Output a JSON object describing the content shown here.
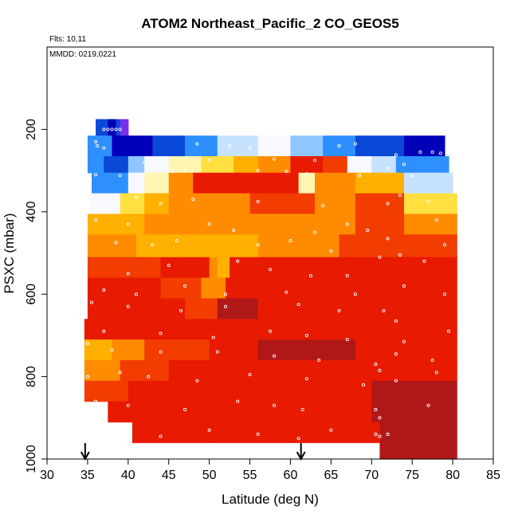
{
  "chart_data": {
    "type": "heatmap",
    "title": "ATOM2 Northeast_Pacific_2 CO_GEOS5",
    "flights_label": "Flts: 10,11",
    "dates_label": "MMDD: 0219,0221",
    "xlabel": "Latitude (deg N)",
    "ylabel": "PSXC (mbar)",
    "xlim": [
      30,
      85
    ],
    "ylim": [
      1000,
      0
    ],
    "x_ticks": [
      30,
      35,
      40,
      45,
      50,
      55,
      60,
      65,
      70,
      75,
      80,
      85
    ],
    "x_tick_labels": [
      "30",
      "35",
      "40",
      "45",
      "50",
      "55",
      "60",
      "65",
      "70",
      "75",
      "80",
      "85"
    ],
    "y_ticks": [
      200,
      400,
      600,
      800,
      1000
    ],
    "y_tick_labels": [
      "200",
      "400",
      "600",
      "800",
      "1000"
    ],
    "arrow_markers_lat": [
      34.7,
      61.3
    ],
    "grid": false,
    "colors": {
      "darkred": "#b01818",
      "red": "#e81a00",
      "redorange": "#f23c00",
      "orange": "#ff8c00",
      "amber": "#ffb000",
      "yellow": "#ffe040",
      "paleyellow": "#fff5b0",
      "white": "#f7f9ff",
      "paleblue": "#c6e2ff",
      "lightblue": "#8fc6ff",
      "skyblue": "#2e90ff",
      "blue": "#0a48d8",
      "navy": "#0000b8",
      "purple": "#7a30e8"
    },
    "layers": [
      {
        "p_top": 175,
        "p_bot": 215,
        "segments": [
          {
            "lat0": 36.0,
            "lat1": 37.5,
            "level": "blue"
          },
          {
            "lat0": 37.5,
            "lat1": 38.5,
            "level": "navy"
          },
          {
            "lat0": 38.5,
            "lat1": 39.0,
            "level": "blue"
          },
          {
            "lat0": 39.0,
            "lat1": 40.0,
            "level": "purple"
          }
        ]
      },
      {
        "p_top": 215,
        "p_bot": 265,
        "segments": [
          {
            "lat0": 35.0,
            "lat1": 38.0,
            "level": "skyblue"
          },
          {
            "lat0": 38.0,
            "lat1": 43.0,
            "level": "navy"
          },
          {
            "lat0": 43.0,
            "lat1": 47.0,
            "level": "blue"
          },
          {
            "lat0": 47.0,
            "lat1": 51.0,
            "level": "skyblue"
          },
          {
            "lat0": 51.0,
            "lat1": 56.0,
            "level": "paleblue"
          },
          {
            "lat0": 56.0,
            "lat1": 60.0,
            "level": "white"
          },
          {
            "lat0": 60.0,
            "lat1": 64.0,
            "level": "lightblue"
          },
          {
            "lat0": 64.0,
            "lat1": 68.0,
            "level": "skyblue"
          },
          {
            "lat0": 68.0,
            "lat1": 74.0,
            "level": "blue"
          },
          {
            "lat0": 74.0,
            "lat1": 79.0,
            "level": "navy"
          }
        ]
      },
      {
        "p_top": 265,
        "p_bot": 305,
        "segments": [
          {
            "lat0": 35.0,
            "lat1": 37.0,
            "level": "skyblue"
          },
          {
            "lat0": 37.0,
            "lat1": 40.0,
            "level": "blue"
          },
          {
            "lat0": 40.0,
            "lat1": 42.0,
            "level": "lightblue"
          },
          {
            "lat0": 42.0,
            "lat1": 45.0,
            "level": "white"
          },
          {
            "lat0": 45.0,
            "lat1": 49.0,
            "level": "paleyellow"
          },
          {
            "lat0": 49.0,
            "lat1": 53.0,
            "level": "yellow"
          },
          {
            "lat0": 53.0,
            "lat1": 56.0,
            "level": "amber"
          },
          {
            "lat0": 56.0,
            "lat1": 60.0,
            "level": "orange"
          },
          {
            "lat0": 60.0,
            "lat1": 64.0,
            "level": "red"
          },
          {
            "lat0": 64.0,
            "lat1": 67.0,
            "level": "redorange"
          },
          {
            "lat0": 67.0,
            "lat1": 70.0,
            "level": "white"
          },
          {
            "lat0": 70.0,
            "lat1": 73.0,
            "level": "paleblue"
          },
          {
            "lat0": 73.0,
            "lat1": 79.5,
            "level": "skyblue"
          }
        ]
      },
      {
        "p_top": 305,
        "p_bot": 355,
        "segments": [
          {
            "lat0": 35.5,
            "lat1": 40.0,
            "level": "skyblue"
          },
          {
            "lat0": 40.0,
            "lat1": 42.0,
            "level": "white"
          },
          {
            "lat0": 42.0,
            "lat1": 45.0,
            "level": "paleyellow"
          },
          {
            "lat0": 45.0,
            "lat1": 48.0,
            "level": "orange"
          },
          {
            "lat0": 48.0,
            "lat1": 55.0,
            "level": "red"
          },
          {
            "lat0": 55.0,
            "lat1": 61.0,
            "level": "red"
          },
          {
            "lat0": 61.0,
            "lat1": 63.0,
            "level": "paleyellow"
          },
          {
            "lat0": 63.0,
            "lat1": 68.0,
            "level": "orange"
          },
          {
            "lat0": 68.0,
            "lat1": 74.0,
            "level": "amber"
          },
          {
            "lat0": 74.0,
            "lat1": 80.0,
            "level": "paleblue"
          }
        ]
      },
      {
        "p_top": 355,
        "p_bot": 405,
        "segments": [
          {
            "lat0": 35.2,
            "lat1": 39.0,
            "level": "white"
          },
          {
            "lat0": 39.0,
            "lat1": 42.0,
            "level": "yellow"
          },
          {
            "lat0": 42.0,
            "lat1": 45.0,
            "level": "amber"
          },
          {
            "lat0": 45.0,
            "lat1": 55.0,
            "level": "orange"
          },
          {
            "lat0": 55.0,
            "lat1": 63.0,
            "level": "redorange"
          },
          {
            "lat0": 63.0,
            "lat1": 68.0,
            "level": "orange"
          },
          {
            "lat0": 68.0,
            "lat1": 74.0,
            "level": "redorange"
          },
          {
            "lat0": 74.0,
            "lat1": 80.5,
            "level": "yellow"
          }
        ]
      },
      {
        "p_top": 405,
        "p_bot": 455,
        "segments": [
          {
            "lat0": 35.0,
            "lat1": 42.0,
            "level": "amber"
          },
          {
            "lat0": 42.0,
            "lat1": 50.0,
            "level": "orange"
          },
          {
            "lat0": 50.0,
            "lat1": 60.0,
            "level": "orange"
          },
          {
            "lat0": 60.0,
            "lat1": 68.0,
            "level": "orange"
          },
          {
            "lat0": 68.0,
            "lat1": 74.0,
            "level": "redorange"
          },
          {
            "lat0": 74.0,
            "lat1": 80.5,
            "level": "orange"
          }
        ]
      },
      {
        "p_top": 455,
        "p_bot": 510,
        "segments": [
          {
            "lat0": 35.0,
            "lat1": 41.0,
            "level": "orange"
          },
          {
            "lat0": 41.0,
            "lat1": 45.0,
            "level": "amber"
          },
          {
            "lat0": 45.0,
            "lat1": 56.0,
            "level": "amber"
          },
          {
            "lat0": 56.0,
            "lat1": 66.0,
            "level": "orange"
          },
          {
            "lat0": 66.0,
            "lat1": 74.0,
            "level": "redorange"
          },
          {
            "lat0": 74.0,
            "lat1": 80.5,
            "level": "redorange"
          }
        ]
      },
      {
        "p_top": 510,
        "p_bot": 560,
        "segments": [
          {
            "lat0": 35.0,
            "lat1": 44.0,
            "level": "redorange"
          },
          {
            "lat0": 44.0,
            "lat1": 50.0,
            "level": "red"
          },
          {
            "lat0": 50.0,
            "lat1": 51.0,
            "level": "orange"
          },
          {
            "lat0": 51.0,
            "lat1": 52.5,
            "level": "amber"
          },
          {
            "lat0": 52.5,
            "lat1": 68.0,
            "level": "red"
          },
          {
            "lat0": 68.0,
            "lat1": 74.0,
            "level": "red"
          },
          {
            "lat0": 74.0,
            "lat1": 80.5,
            "level": "red"
          }
        ]
      },
      {
        "p_top": 560,
        "p_bot": 610,
        "segments": [
          {
            "lat0": 35.0,
            "lat1": 44.0,
            "level": "red"
          },
          {
            "lat0": 44.0,
            "lat1": 49.0,
            "level": "redorange"
          },
          {
            "lat0": 49.0,
            "lat1": 52.0,
            "level": "orange"
          },
          {
            "lat0": 52.0,
            "lat1": 60.0,
            "level": "red"
          },
          {
            "lat0": 60.0,
            "lat1": 68.0,
            "level": "red"
          },
          {
            "lat0": 68.0,
            "lat1": 80.5,
            "level": "red"
          }
        ]
      },
      {
        "p_top": 610,
        "p_bot": 660,
        "segments": [
          {
            "lat0": 35.0,
            "lat1": 47.0,
            "level": "red"
          },
          {
            "lat0": 47.0,
            "lat1": 51.0,
            "level": "redorange"
          },
          {
            "lat0": 51.0,
            "lat1": 56.0,
            "level": "darkred"
          },
          {
            "lat0": 56.0,
            "lat1": 60.0,
            "level": "red"
          },
          {
            "lat0": 60.0,
            "lat1": 68.0,
            "level": "red"
          },
          {
            "lat0": 68.0,
            "lat1": 80.5,
            "level": "red"
          }
        ]
      },
      {
        "p_top": 660,
        "p_bot": 710,
        "segments": [
          {
            "lat0": 34.6,
            "lat1": 44.0,
            "level": "red"
          },
          {
            "lat0": 44.0,
            "lat1": 50.0,
            "level": "red"
          },
          {
            "lat0": 50.0,
            "lat1": 56.0,
            "level": "red"
          },
          {
            "lat0": 56.0,
            "lat1": 66.0,
            "level": "red"
          },
          {
            "lat0": 66.0,
            "lat1": 80.5,
            "level": "red"
          }
        ]
      },
      {
        "p_top": 710,
        "p_bot": 760,
        "segments": [
          {
            "lat0": 34.6,
            "lat1": 38.0,
            "level": "amber"
          },
          {
            "lat0": 38.0,
            "lat1": 42.0,
            "level": "orange"
          },
          {
            "lat0": 42.0,
            "lat1": 50.0,
            "level": "redorange"
          },
          {
            "lat0": 50.0,
            "lat1": 56.0,
            "level": "red"
          },
          {
            "lat0": 56.0,
            "lat1": 68.0,
            "level": "darkred"
          },
          {
            "lat0": 68.0,
            "lat1": 80.5,
            "level": "red"
          }
        ]
      },
      {
        "p_top": 760,
        "p_bot": 810,
        "segments": [
          {
            "lat0": 34.6,
            "lat1": 39.0,
            "level": "orange"
          },
          {
            "lat0": 39.0,
            "lat1": 45.0,
            "level": "redorange"
          },
          {
            "lat0": 45.0,
            "lat1": 55.0,
            "level": "red"
          },
          {
            "lat0": 55.0,
            "lat1": 66.0,
            "level": "red"
          },
          {
            "lat0": 66.0,
            "lat1": 80.5,
            "level": "red"
          }
        ]
      },
      {
        "p_top": 810,
        "p_bot": 860,
        "segments": [
          {
            "lat0": 34.6,
            "lat1": 40.0,
            "level": "redorange"
          },
          {
            "lat0": 40.0,
            "lat1": 50.0,
            "level": "red"
          },
          {
            "lat0": 50.0,
            "lat1": 60.0,
            "level": "red"
          },
          {
            "lat0": 60.0,
            "lat1": 70.0,
            "level": "red"
          },
          {
            "lat0": 70.0,
            "lat1": 80.5,
            "level": "darkred"
          }
        ]
      },
      {
        "p_top": 860,
        "p_bot": 910,
        "segments": [
          {
            "lat0": 37.5,
            "lat1": 45.0,
            "level": "red"
          },
          {
            "lat0": 45.0,
            "lat1": 58.0,
            "level": "red"
          },
          {
            "lat0": 58.0,
            "lat1": 70.0,
            "level": "red"
          },
          {
            "lat0": 70.0,
            "lat1": 80.5,
            "level": "darkred"
          }
        ]
      },
      {
        "p_top": 910,
        "p_bot": 960,
        "segments": [
          {
            "lat0": 40.5,
            "lat1": 50.0,
            "level": "red"
          },
          {
            "lat0": 50.0,
            "lat1": 60.0,
            "level": "red"
          },
          {
            "lat0": 60.0,
            "lat1": 71.0,
            "level": "red"
          },
          {
            "lat0": 71.0,
            "lat1": 80.5,
            "level": "darkred"
          }
        ]
      },
      {
        "p_top": 960,
        "p_bot": 1000,
        "segments": [
          {
            "lat0": 71.0,
            "lat1": 80.5,
            "level": "darkred"
          }
        ]
      }
    ],
    "observations": [
      [
        37.0,
        200
      ],
      [
        37.5,
        200
      ],
      [
        38.0,
        200
      ],
      [
        38.5,
        200
      ],
      [
        39.0,
        200
      ],
      [
        36.0,
        230
      ],
      [
        36.2,
        240
      ],
      [
        37.0,
        245
      ],
      [
        48.5,
        235
      ],
      [
        52.5,
        240
      ],
      [
        55.0,
        245
      ],
      [
        57.0,
        262
      ],
      [
        66.0,
        240
      ],
      [
        68.0,
        235
      ],
      [
        42.0,
        280
      ],
      [
        43.0,
        280
      ],
      [
        44.0,
        285
      ],
      [
        50.0,
        275
      ],
      [
        58.0,
        272
      ],
      [
        63.0,
        275
      ],
      [
        73.0,
        262
      ],
      [
        74.0,
        285
      ],
      [
        76.0,
        255
      ],
      [
        77.5,
        255
      ],
      [
        78.5,
        258
      ],
      [
        36.0,
        310
      ],
      [
        39.0,
        312
      ],
      [
        45.5,
        302
      ],
      [
        47.0,
        300
      ],
      [
        56.0,
        300
      ],
      [
        59.5,
        302
      ],
      [
        62.0,
        308
      ],
      [
        68.5,
        312
      ],
      [
        72.0,
        295
      ],
      [
        75.0,
        312
      ],
      [
        41.0,
        365
      ],
      [
        44.0,
        380
      ],
      [
        48.0,
        370
      ],
      [
        56.0,
        375
      ],
      [
        64.0,
        385
      ],
      [
        72.0,
        380
      ],
      [
        73.5,
        360
      ],
      [
        77.0,
        375
      ],
      [
        36.0,
        420
      ],
      [
        40.0,
        430
      ],
      [
        50.0,
        430
      ],
      [
        53.0,
        445
      ],
      [
        63.0,
        450
      ],
      [
        67.0,
        430
      ],
      [
        69.5,
        445
      ],
      [
        72.0,
        465
      ],
      [
        78.0,
        420
      ],
      [
        38.5,
        475
      ],
      [
        43.0,
        480
      ],
      [
        46.0,
        470
      ],
      [
        56.0,
        480
      ],
      [
        60.0,
        470
      ],
      [
        65.0,
        495
      ],
      [
        73.5,
        505
      ],
      [
        79.0,
        480
      ],
      [
        40.0,
        550
      ],
      [
        45.0,
        530
      ],
      [
        53.5,
        520
      ],
      [
        57.5,
        540
      ],
      [
        62.5,
        555
      ],
      [
        67.0,
        555
      ],
      [
        71.0,
        510
      ],
      [
        76.5,
        520
      ],
      [
        37.0,
        590
      ],
      [
        41.0,
        600
      ],
      [
        47.0,
        580
      ],
      [
        52.0,
        600
      ],
      [
        59.5,
        595
      ],
      [
        68.0,
        600
      ],
      [
        74.0,
        580
      ],
      [
        79.0,
        600
      ],
      [
        35.5,
        620
      ],
      [
        40.0,
        630
      ],
      [
        46.5,
        640
      ],
      [
        52.0,
        630
      ],
      [
        61.0,
        625
      ],
      [
        66.0,
        640
      ],
      [
        71.5,
        640
      ],
      [
        73.0,
        665
      ],
      [
        37.0,
        690
      ],
      [
        44.0,
        695
      ],
      [
        50.5,
        705
      ],
      [
        57.5,
        690
      ],
      [
        62.0,
        700
      ],
      [
        67.0,
        710
      ],
      [
        74.0,
        715
      ],
      [
        79.5,
        690
      ],
      [
        35.0,
        720
      ],
      [
        38.0,
        735
      ],
      [
        44.0,
        740
      ],
      [
        51.0,
        740
      ],
      [
        58.0,
        750
      ],
      [
        63.5,
        760
      ],
      [
        70.5,
        770
      ],
      [
        71.0,
        785
      ],
      [
        73.0,
        745
      ],
      [
        77.5,
        760
      ],
      [
        35.0,
        800
      ],
      [
        39.0,
        790
      ],
      [
        42.5,
        800
      ],
      [
        48.5,
        810
      ],
      [
        55.0,
        795
      ],
      [
        62.0,
        805
      ],
      [
        69.0,
        820
      ],
      [
        73.0,
        810
      ],
      [
        78.0,
        790
      ],
      [
        36.0,
        860
      ],
      [
        40.0,
        870
      ],
      [
        47.0,
        880
      ],
      [
        53.5,
        860
      ],
      [
        58.0,
        870
      ],
      [
        61.5,
        880
      ],
      [
        70.5,
        880
      ],
      [
        71.0,
        900
      ],
      [
        77.0,
        870
      ],
      [
        44.0,
        945
      ],
      [
        50.0,
        930
      ],
      [
        56.0,
        940
      ],
      [
        61.0,
        950
      ],
      [
        65.0,
        930
      ],
      [
        70.5,
        940
      ],
      [
        71.0,
        945
      ],
      [
        72.0,
        940
      ]
    ]
  }
}
